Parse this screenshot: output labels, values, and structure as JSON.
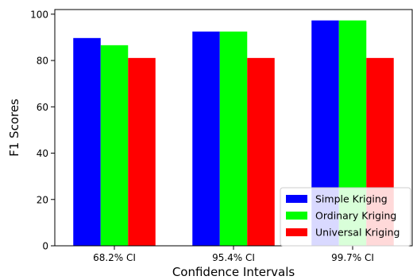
{
  "chart_data": {
    "type": "bar",
    "title": "",
    "xlabel": "Confidence Intervals",
    "ylabel": "F1 Scores",
    "categories": [
      "68.2% CI",
      "95.4% CI",
      "99.7% CI"
    ],
    "series": [
      {
        "name": "Simple Kriging",
        "color": "#0000ff",
        "values": [
          89.7,
          92.5,
          97.3
        ]
      },
      {
        "name": "Ordinary Kriging",
        "color": "#00ff00",
        "values": [
          86.6,
          92.5,
          97.3
        ]
      },
      {
        "name": "Universal Kriging",
        "color": "#ff0000",
        "values": [
          81.1,
          81.1,
          81.1
        ]
      }
    ],
    "ylim": [
      0,
      102
    ],
    "yticks": [
      0,
      20,
      40,
      60,
      80,
      100
    ],
    "grid": false,
    "legend_position": "lower-right"
  }
}
